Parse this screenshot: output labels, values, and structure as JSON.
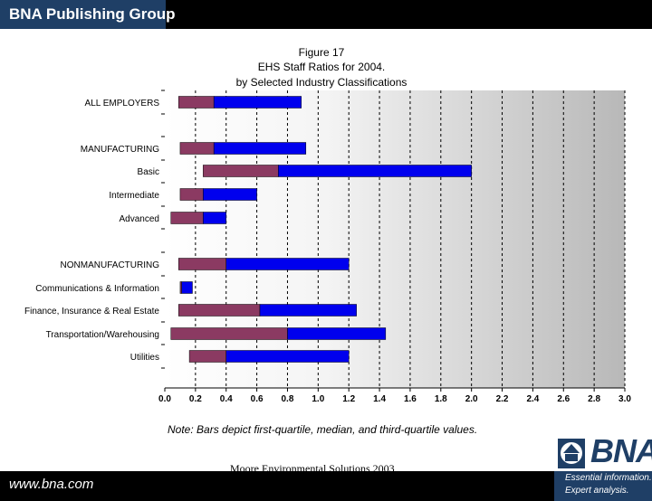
{
  "header": {
    "brand": "BNA Publishing Group"
  },
  "chart_data": {
    "type": "bar",
    "orientation": "horizontal",
    "style": "box-range",
    "title_lines": [
      "Figure 17",
      "EHS Staff Ratios for 2004.",
      "by Selected Industry Classifications"
    ],
    "xlim": [
      0.0,
      3.0
    ],
    "xticks": [
      "0.0",
      "0.2",
      "0.4",
      "0.6",
      "0.8",
      "1.0",
      "1.2",
      "1.4",
      "1.6",
      "1.8",
      "2.0",
      "2.2",
      "2.4",
      "2.6",
      "2.8",
      "3.0"
    ],
    "xlabel": "",
    "ylabel": "",
    "categories": [
      {
        "label": "ALL EMPLOYERS",
        "q1": 0.09,
        "median": 0.32,
        "q3": 0.89
      },
      {
        "label": "MANUFACTURING",
        "q1": 0.1,
        "median": 0.32,
        "q3": 0.92
      },
      {
        "label": "Basic",
        "q1": 0.25,
        "median": 0.74,
        "q3": 2.0
      },
      {
        "label": "Intermediate",
        "q1": 0.1,
        "median": 0.25,
        "q3": 0.6
      },
      {
        "label": "Advanced",
        "q1": 0.04,
        "median": 0.25,
        "q3": 0.4
      },
      {
        "label": "NONMANUFACTURING",
        "q1": 0.09,
        "median": 0.4,
        "q3": 1.2
      },
      {
        "label": "Communications & Information",
        "q1": 0.1,
        "median": 0.11,
        "q3": 0.18
      },
      {
        "label": "Finance, Insurance & Real Estate",
        "q1": 0.09,
        "median": 0.62,
        "q3": 1.25
      },
      {
        "label": "Transportation/Warehousing",
        "q1": 0.04,
        "median": 0.8,
        "q3": 1.44
      },
      {
        "label": "Utilities",
        "q1": 0.16,
        "median": 0.4,
        "q3": 1.2
      }
    ],
    "series": [
      {
        "name": "first quartile to median",
        "color": "#8b3a62"
      },
      {
        "name": "median to third quartile",
        "color": "#0000ee"
      }
    ],
    "grid": true
  },
  "note": "Note: Bars depict first-quartile, median, and third-quartile values.",
  "footer": {
    "source": "Moore Environmental Solutions 2003",
    "url": "www.bna.com"
  },
  "logo": {
    "text": "BNA",
    "tagline1": "Essential information.",
    "tagline2": "Expert analysis."
  }
}
